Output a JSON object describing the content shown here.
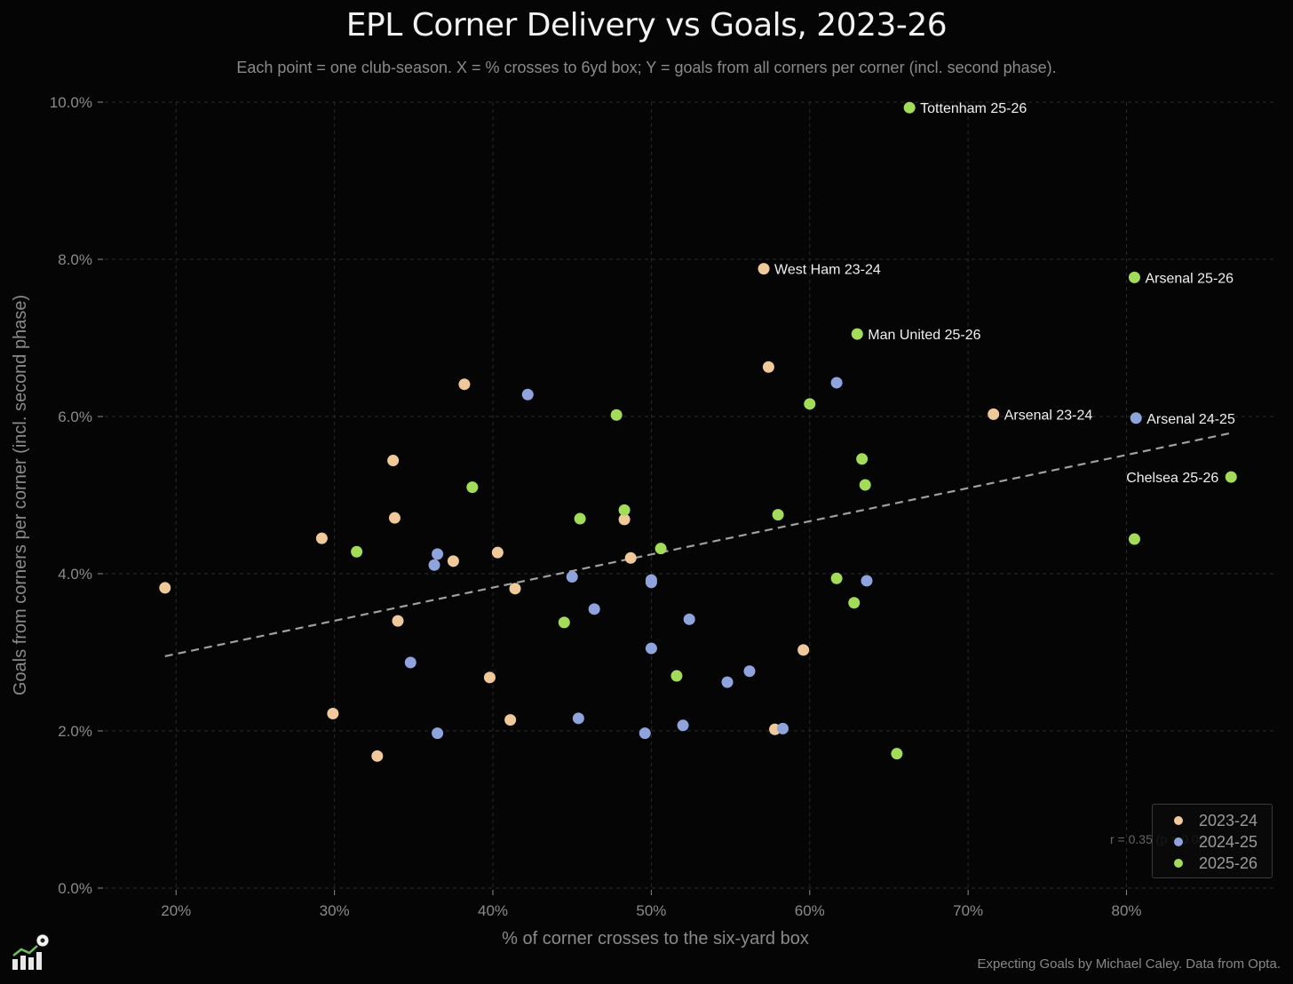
{
  "title": "EPL Corner Delivery vs Goals, 2023-26",
  "subtitle": "Each point = one club-season. X = % crosses to 6yd box; Y = goals from all corners per corner (incl. second phase).",
  "footer": "Expecting Goals by Michael Caley. Data from Opta.",
  "stat_note": "r = 0.35 (p = 0.004)",
  "logo_icon": "bar-chart-football-icon",
  "colors": {
    "background": "#050505",
    "2023-24": "#f0c99a",
    "2024-25": "#8fa3dd",
    "2025-26": "#a3dc58",
    "trend": "#a0a0a0",
    "grid": "#2a2a2a",
    "axis_text": "#8a8a8a"
  },
  "chart_data": {
    "type": "scatter",
    "title": "EPL Corner Delivery vs Goals, 2023-26",
    "xlabel": "% of corner crosses to the six-yard box",
    "ylabel": "Goals from corners per corner (incl. second phase)",
    "xlim": [
      15.5,
      89.5
    ],
    "ylim": [
      0,
      10
    ],
    "grid": true,
    "legend_position": "bottom-right",
    "x_ticks": [
      {
        "value": 20,
        "label": "20%"
      },
      {
        "value": 30,
        "label": "30%"
      },
      {
        "value": 40,
        "label": "40%"
      },
      {
        "value": 50,
        "label": "50%"
      },
      {
        "value": 60,
        "label": "60%"
      },
      {
        "value": 70,
        "label": "70%"
      },
      {
        "value": 80,
        "label": "80%"
      }
    ],
    "y_ticks": [
      {
        "value": 0,
        "label": "0.0%"
      },
      {
        "value": 2,
        "label": "2.0%"
      },
      {
        "value": 4,
        "label": "4.0%"
      },
      {
        "value": 6,
        "label": "6.0%"
      },
      {
        "value": 8,
        "label": "8.0%"
      },
      {
        "value": 10,
        "label": "10.0%"
      }
    ],
    "trendline": {
      "x": [
        19.3,
        86.6
      ],
      "y": [
        2.95,
        5.79
      ]
    },
    "series": [
      {
        "name": "2023-24",
        "color": "#f0c99a",
        "points": [
          {
            "x": 19.3,
            "y": 3.82
          },
          {
            "x": 29.2,
            "y": 4.45
          },
          {
            "x": 29.9,
            "y": 2.22
          },
          {
            "x": 32.7,
            "y": 1.68
          },
          {
            "x": 33.7,
            "y": 5.44
          },
          {
            "x": 33.8,
            "y": 4.71
          },
          {
            "x": 34.0,
            "y": 3.4
          },
          {
            "x": 37.5,
            "y": 4.16
          },
          {
            "x": 38.2,
            "y": 6.41
          },
          {
            "x": 39.8,
            "y": 2.68
          },
          {
            "x": 40.3,
            "y": 4.27
          },
          {
            "x": 41.1,
            "y": 2.14
          },
          {
            "x": 41.4,
            "y": 3.81
          },
          {
            "x": 48.3,
            "y": 4.69
          },
          {
            "x": 48.7,
            "y": 4.2
          },
          {
            "x": 57.1,
            "y": 7.88,
            "label": "West Ham 23-24"
          },
          {
            "x": 57.4,
            "y": 6.63
          },
          {
            "x": 57.8,
            "y": 2.02
          },
          {
            "x": 59.6,
            "y": 3.03
          },
          {
            "x": 71.6,
            "y": 6.03,
            "label": "Arsenal 23-24"
          }
        ]
      },
      {
        "name": "2024-25",
        "color": "#8fa3dd",
        "points": [
          {
            "x": 34.8,
            "y": 2.87
          },
          {
            "x": 36.3,
            "y": 4.11
          },
          {
            "x": 36.5,
            "y": 4.25
          },
          {
            "x": 36.5,
            "y": 1.97
          },
          {
            "x": 42.2,
            "y": 6.28
          },
          {
            "x": 45.0,
            "y": 3.96
          },
          {
            "x": 45.4,
            "y": 2.16
          },
          {
            "x": 46.4,
            "y": 3.55
          },
          {
            "x": 49.6,
            "y": 1.97
          },
          {
            "x": 50.0,
            "y": 3.92
          },
          {
            "x": 50.0,
            "y": 3.89
          },
          {
            "x": 50.0,
            "y": 3.05
          },
          {
            "x": 52.0,
            "y": 2.07
          },
          {
            "x": 52.4,
            "y": 3.42
          },
          {
            "x": 54.8,
            "y": 2.62
          },
          {
            "x": 56.2,
            "y": 2.76
          },
          {
            "x": 58.3,
            "y": 2.03
          },
          {
            "x": 61.7,
            "y": 6.43
          },
          {
            "x": 63.6,
            "y": 3.91
          },
          {
            "x": 80.6,
            "y": 5.98,
            "label": "Arsenal 24-25"
          }
        ]
      },
      {
        "name": "2025-26",
        "color": "#a3dc58",
        "points": [
          {
            "x": 31.4,
            "y": 4.28
          },
          {
            "x": 38.7,
            "y": 5.1
          },
          {
            "x": 44.5,
            "y": 3.38
          },
          {
            "x": 45.5,
            "y": 4.7
          },
          {
            "x": 47.8,
            "y": 6.02
          },
          {
            "x": 48.3,
            "y": 4.81
          },
          {
            "x": 50.6,
            "y": 4.32
          },
          {
            "x": 51.6,
            "y": 2.7
          },
          {
            "x": 58.0,
            "y": 4.75
          },
          {
            "x": 60.0,
            "y": 6.16
          },
          {
            "x": 61.7,
            "y": 3.94
          },
          {
            "x": 62.8,
            "y": 3.63
          },
          {
            "x": 63.0,
            "y": 7.05,
            "label": "Man United 25-26"
          },
          {
            "x": 63.3,
            "y": 5.46
          },
          {
            "x": 63.5,
            "y": 5.13
          },
          {
            "x": 65.5,
            "y": 1.71
          },
          {
            "x": 66.3,
            "y": 9.93,
            "label": "Tottenham 25-26"
          },
          {
            "x": 80.5,
            "y": 7.77,
            "label": "Arsenal 25-26"
          },
          {
            "x": 80.5,
            "y": 4.44
          },
          {
            "x": 86.6,
            "y": 5.23,
            "label": "Chelsea 25-26"
          }
        ]
      }
    ]
  }
}
